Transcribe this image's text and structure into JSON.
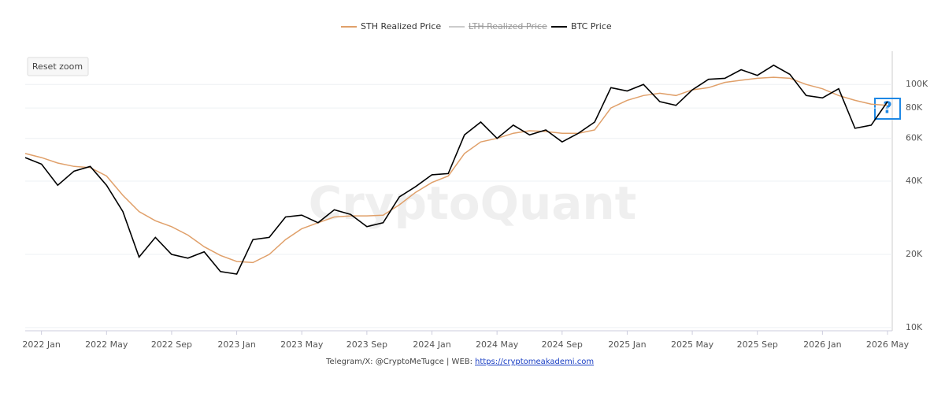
{
  "chart_data": {
    "type": "line",
    "log_y": true,
    "grid": true,
    "legend_position": "top",
    "watermark": "CryptoQuant",
    "reset_button": "Reset zoom",
    "annotation": "?",
    "footer": {
      "text": "Telegram/X: @CryptoMeTugce | WEB:",
      "link": "https://cryptomeakademi.com"
    },
    "x": [
      "2021-12",
      "2022-01",
      "2022-02",
      "2022-03",
      "2022-04",
      "2022-05",
      "2022-06",
      "2022-07",
      "2022-08",
      "2022-09",
      "2022-10",
      "2022-11",
      "2022-12",
      "2023-01",
      "2023-02",
      "2023-03",
      "2023-04",
      "2023-05",
      "2023-06",
      "2023-07",
      "2023-08",
      "2023-09",
      "2023-10",
      "2023-11",
      "2023-12",
      "2024-01",
      "2024-02",
      "2024-03",
      "2024-04",
      "2024-05",
      "2024-06",
      "2024-07",
      "2024-08",
      "2024-09",
      "2024-10",
      "2024-11",
      "2024-12",
      "2025-01",
      "2025-02",
      "2025-03",
      "2025-04",
      "2025-05",
      "2025-06",
      "2025-07",
      "2025-08",
      "2025-09",
      "2025-10",
      "2025-11",
      "2025-12",
      "2026-01",
      "2026-02",
      "2026-03",
      "2026-04",
      "2026-05"
    ],
    "series": [
      {
        "name": "STH Realized Price",
        "color": "#e0a06a",
        "visible": true,
        "values": [
          52000,
          50000,
          47500,
          46000,
          45500,
          42000,
          35000,
          30000,
          27500,
          26000,
          24000,
          21500,
          19800,
          18700,
          18500,
          20000,
          23000,
          25500,
          27000,
          28500,
          28800,
          28800,
          29000,
          32000,
          36000,
          39500,
          42000,
          52000,
          58000,
          60000,
          63000,
          64500,
          64000,
          63000,
          63000,
          65000,
          80000,
          86000,
          90000,
          92000,
          90000,
          95000,
          97000,
          102000,
          104000,
          106000,
          107000,
          106000,
          100000,
          96000,
          90000,
          86000,
          83000,
          82000
        ]
      },
      {
        "name": "LTH Realized Price",
        "color": "#cccccc",
        "visible": false,
        "values": [
          null,
          null,
          null,
          null,
          null,
          null,
          null,
          null,
          null,
          null,
          null,
          null,
          null,
          null,
          null,
          null,
          null,
          null,
          null,
          null,
          null,
          null,
          null,
          null,
          null,
          null,
          null,
          null,
          null,
          null,
          null,
          null,
          null,
          null,
          null,
          null,
          null,
          null,
          null,
          null,
          null,
          null,
          null,
          null,
          null,
          null,
          null,
          null,
          null,
          null,
          null,
          null,
          null,
          null
        ]
      },
      {
        "name": "BTC Price",
        "color": "#000000",
        "visible": true,
        "values": [
          50000,
          47000,
          38500,
          44000,
          46000,
          38500,
          30000,
          19500,
          23500,
          20000,
          19300,
          20500,
          17000,
          16600,
          23000,
          23500,
          28500,
          29000,
          27000,
          30500,
          29200,
          26000,
          27000,
          34500,
          38000,
          42500,
          43000,
          62000,
          70000,
          60000,
          68000,
          62000,
          65000,
          58000,
          63000,
          70000,
          97000,
          94000,
          100000,
          85000,
          82000,
          95000,
          105000,
          106000,
          115000,
          109000,
          120000,
          110000,
          90000,
          88000,
          96000,
          66000,
          68000,
          85000
        ]
      }
    ],
    "xlim": [
      "2021-12",
      "2026-05"
    ],
    "xticks": [
      {
        "value": "2022-01",
        "label": "2022 Jan"
      },
      {
        "value": "2022-05",
        "label": "2022 May"
      },
      {
        "value": "2022-09",
        "label": "2022 Sep"
      },
      {
        "value": "2023-01",
        "label": "2023 Jan"
      },
      {
        "value": "2023-05",
        "label": "2023 May"
      },
      {
        "value": "2023-09",
        "label": "2023 Sep"
      },
      {
        "value": "2024-01",
        "label": "2024 Jan"
      },
      {
        "value": "2024-05",
        "label": "2024 May"
      },
      {
        "value": "2024-09",
        "label": "2024 Sep"
      },
      {
        "value": "2025-01",
        "label": "2025 Jan"
      },
      {
        "value": "2025-05",
        "label": "2025 May"
      },
      {
        "value": "2025-09",
        "label": "2025 Sep"
      },
      {
        "value": "2026-01",
        "label": "2026 Jan"
      },
      {
        "value": "2026-05",
        "label": "2026 May"
      }
    ],
    "ylim": [
      9700,
      137000
    ],
    "yticks": [
      {
        "value": 10000,
        "label": "10K"
      },
      {
        "value": 20000,
        "label": "20K"
      },
      {
        "value": 40000,
        "label": "40K"
      },
      {
        "value": 60000,
        "label": "60K"
      },
      {
        "value": 80000,
        "label": "80K"
      },
      {
        "value": 100000,
        "label": "100K"
      }
    ]
  }
}
